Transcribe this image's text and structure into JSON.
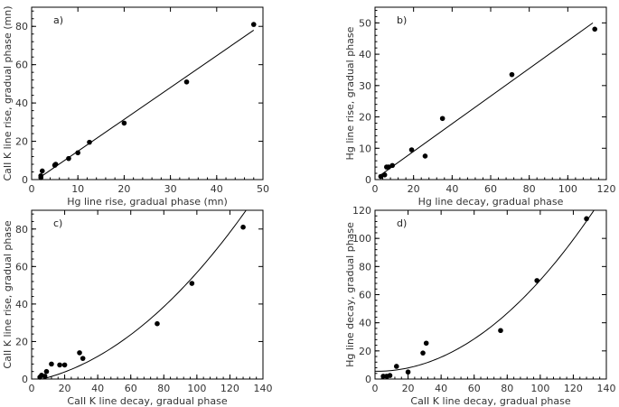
{
  "chart_data": [
    {
      "type": "scatter",
      "panel_label": "a)",
      "xlabel": "Hg line rise, gradual phase (mn)",
      "ylabel": "CaII K line rise, gradual phase (mn)",
      "xlim": [
        0,
        50
      ],
      "ylim": [
        0,
        90
      ],
      "xticks": [
        0,
        10,
        20,
        30,
        40,
        50
      ],
      "yticks": [
        0,
        20,
        40,
        60,
        80
      ],
      "x": [
        2,
        2,
        2.3,
        5,
        5.2,
        8,
        10,
        12.5,
        20,
        33.5,
        48
      ],
      "y": [
        1,
        2,
        4.5,
        7.5,
        8,
        11,
        14,
        19.5,
        29.5,
        51,
        81
      ],
      "fit": {
        "kind": "linear",
        "x": [
          2,
          48
        ],
        "y": [
          1.5,
          78
        ]
      }
    },
    {
      "type": "scatter",
      "panel_label": "b)",
      "xlabel": "Hg line decay, gradual phase",
      "ylabel": "Hg line rise, gradual phase",
      "xlim": [
        0,
        120
      ],
      "ylim": [
        0,
        55
      ],
      "xticks": [
        0,
        20,
        40,
        60,
        80,
        100,
        120
      ],
      "yticks": [
        0,
        10,
        20,
        30,
        40,
        50
      ],
      "x": [
        3,
        5,
        6,
        7,
        9,
        19,
        26,
        35,
        71,
        114
      ],
      "y": [
        1,
        1.5,
        4,
        4,
        4.5,
        9.5,
        7.5,
        19.5,
        33.5,
        48
      ],
      "fit": {
        "kind": "linear",
        "x": [
          3,
          113
        ],
        "y": [
          1.5,
          50
        ]
      }
    },
    {
      "type": "scatter",
      "panel_label": "c)",
      "xlabel": "CaII K line decay, gradual phase",
      "ylabel": "CaII K line rise, gradual phase",
      "xlim": [
        0,
        140
      ],
      "ylim": [
        0,
        90
      ],
      "xticks": [
        0,
        20,
        40,
        60,
        80,
        100,
        120,
        140
      ],
      "yticks": [
        0,
        20,
        40,
        60,
        80
      ],
      "x": [
        5,
        6,
        8,
        9,
        12,
        17,
        20,
        29,
        31,
        76,
        97,
        128
      ],
      "y": [
        1,
        2,
        1.5,
        4,
        8,
        7.5,
        7.5,
        14,
        11,
        29.5,
        51,
        81
      ],
      "fit": {
        "kind": "quadratic",
        "coef": [
          -1.24,
          0.1676,
          0.004125
        ],
        "x_range": [
          0,
          140
        ]
      }
    },
    {
      "type": "scatter",
      "panel_label": "d)",
      "xlabel": "CaII K line decay, gradual phase",
      "ylabel": "Hg line decay, gradual phase",
      "xlim": [
        0,
        140
      ],
      "ylim": [
        0,
        120
      ],
      "xticks": [
        0,
        20,
        40,
        60,
        80,
        100,
        120,
        140
      ],
      "yticks": [
        0,
        20,
        40,
        60,
        80,
        100,
        120
      ],
      "x": [
        5,
        7,
        9,
        13,
        20,
        29,
        31,
        76,
        98,
        128
      ],
      "y": [
        2,
        2,
        2.5,
        9,
        5,
        18.5,
        25.5,
        34.5,
        70,
        114
      ],
      "fit": {
        "kind": "quadratic",
        "coef": [
          5.53,
          -0.0147,
          0.00663
        ],
        "x_range": [
          0,
          133
        ]
      }
    }
  ]
}
